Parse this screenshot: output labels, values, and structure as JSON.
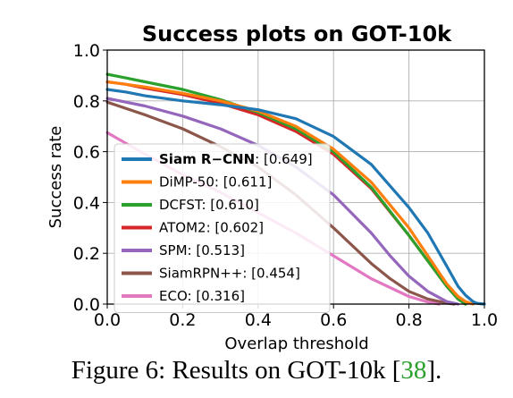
{
  "chart_data": {
    "type": "line",
    "title": "Success plots on GOT-10k",
    "xlabel": "Overlap threshold",
    "ylabel": "Success rate",
    "xlim": [
      0.0,
      1.0
    ],
    "ylim": [
      0.0,
      1.0
    ],
    "xticks": [
      "0.0",
      "0.2",
      "0.4",
      "0.6",
      "0.8",
      "1.0"
    ],
    "yticks": [
      "0.0",
      "0.2",
      "0.4",
      "0.6",
      "0.8",
      "1.0"
    ],
    "grid": true,
    "legend_position": "lower-left",
    "series": [
      {
        "name": "Siam R−CNN",
        "score": "[0.649]",
        "color": "#1f77b4",
        "bold": true,
        "x": [
          0.0,
          0.05,
          0.1,
          0.2,
          0.3,
          0.4,
          0.5,
          0.6,
          0.7,
          0.8,
          0.85,
          0.9,
          0.93,
          0.95,
          0.97,
          0.98,
          1.0
        ],
        "y": [
          0.845,
          0.835,
          0.82,
          0.8,
          0.785,
          0.765,
          0.73,
          0.66,
          0.55,
          0.38,
          0.28,
          0.15,
          0.07,
          0.035,
          0.01,
          0.003,
          0.0
        ]
      },
      {
        "name": "DiMP-50",
        "score": "[0.611]",
        "color": "#ff7f0e",
        "bold": false,
        "x": [
          0.0,
          0.05,
          0.1,
          0.2,
          0.3,
          0.4,
          0.5,
          0.6,
          0.7,
          0.8,
          0.85,
          0.9,
          0.93,
          0.95,
          0.97
        ],
        "y": [
          0.875,
          0.865,
          0.855,
          0.83,
          0.8,
          0.76,
          0.7,
          0.61,
          0.48,
          0.3,
          0.19,
          0.08,
          0.03,
          0.01,
          0.0
        ]
      },
      {
        "name": "DCFST",
        "score": "[0.610]",
        "color": "#2ca02c",
        "bold": false,
        "x": [
          0.0,
          0.05,
          0.1,
          0.2,
          0.3,
          0.4,
          0.5,
          0.6,
          0.7,
          0.8,
          0.85,
          0.9,
          0.93,
          0.95
        ],
        "y": [
          0.905,
          0.89,
          0.875,
          0.845,
          0.805,
          0.755,
          0.69,
          0.6,
          0.46,
          0.27,
          0.17,
          0.07,
          0.02,
          0.0
        ]
      },
      {
        "name": "ATOM2",
        "score": "[0.602]",
        "color": "#d62728",
        "bold": false,
        "x": [
          0.0,
          0.05,
          0.1,
          0.2,
          0.3,
          0.4,
          0.5,
          0.6,
          0.7,
          0.8,
          0.85,
          0.9,
          0.93,
          0.95
        ],
        "y": [
          0.875,
          0.865,
          0.85,
          0.825,
          0.79,
          0.745,
          0.68,
          0.59,
          0.455,
          0.27,
          0.17,
          0.07,
          0.02,
          0.0
        ]
      },
      {
        "name": "SPM",
        "score": "[0.513]",
        "color": "#9467bd",
        "bold": false,
        "x": [
          0.0,
          0.1,
          0.2,
          0.3,
          0.4,
          0.5,
          0.6,
          0.7,
          0.75,
          0.8,
          0.85,
          0.9,
          0.93
        ],
        "y": [
          0.81,
          0.78,
          0.74,
          0.69,
          0.625,
          0.54,
          0.43,
          0.28,
          0.19,
          0.11,
          0.05,
          0.01,
          0.0
        ]
      },
      {
        "name": "SiamRPN++",
        "score": "[0.454]",
        "color": "#8c564b",
        "bold": false,
        "x": [
          0.0,
          0.1,
          0.2,
          0.3,
          0.4,
          0.5,
          0.6,
          0.7,
          0.75,
          0.8,
          0.85,
          0.9,
          0.92
        ],
        "y": [
          0.795,
          0.745,
          0.69,
          0.62,
          0.54,
          0.43,
          0.3,
          0.16,
          0.1,
          0.05,
          0.02,
          0.004,
          0.0
        ]
      },
      {
        "name": "ECO",
        "score": "[0.316]",
        "color": "#e377c2",
        "bold": false,
        "x": [
          0.0,
          0.1,
          0.2,
          0.3,
          0.4,
          0.5,
          0.6,
          0.7,
          0.8,
          0.85,
          0.88
        ],
        "y": [
          0.675,
          0.59,
          0.51,
          0.44,
          0.36,
          0.28,
          0.19,
          0.1,
          0.03,
          0.008,
          0.0
        ]
      }
    ]
  },
  "caption": {
    "prefix": "Figure 6: Results on GOT-10k [",
    "ref": "38",
    "suffix": "]."
  }
}
